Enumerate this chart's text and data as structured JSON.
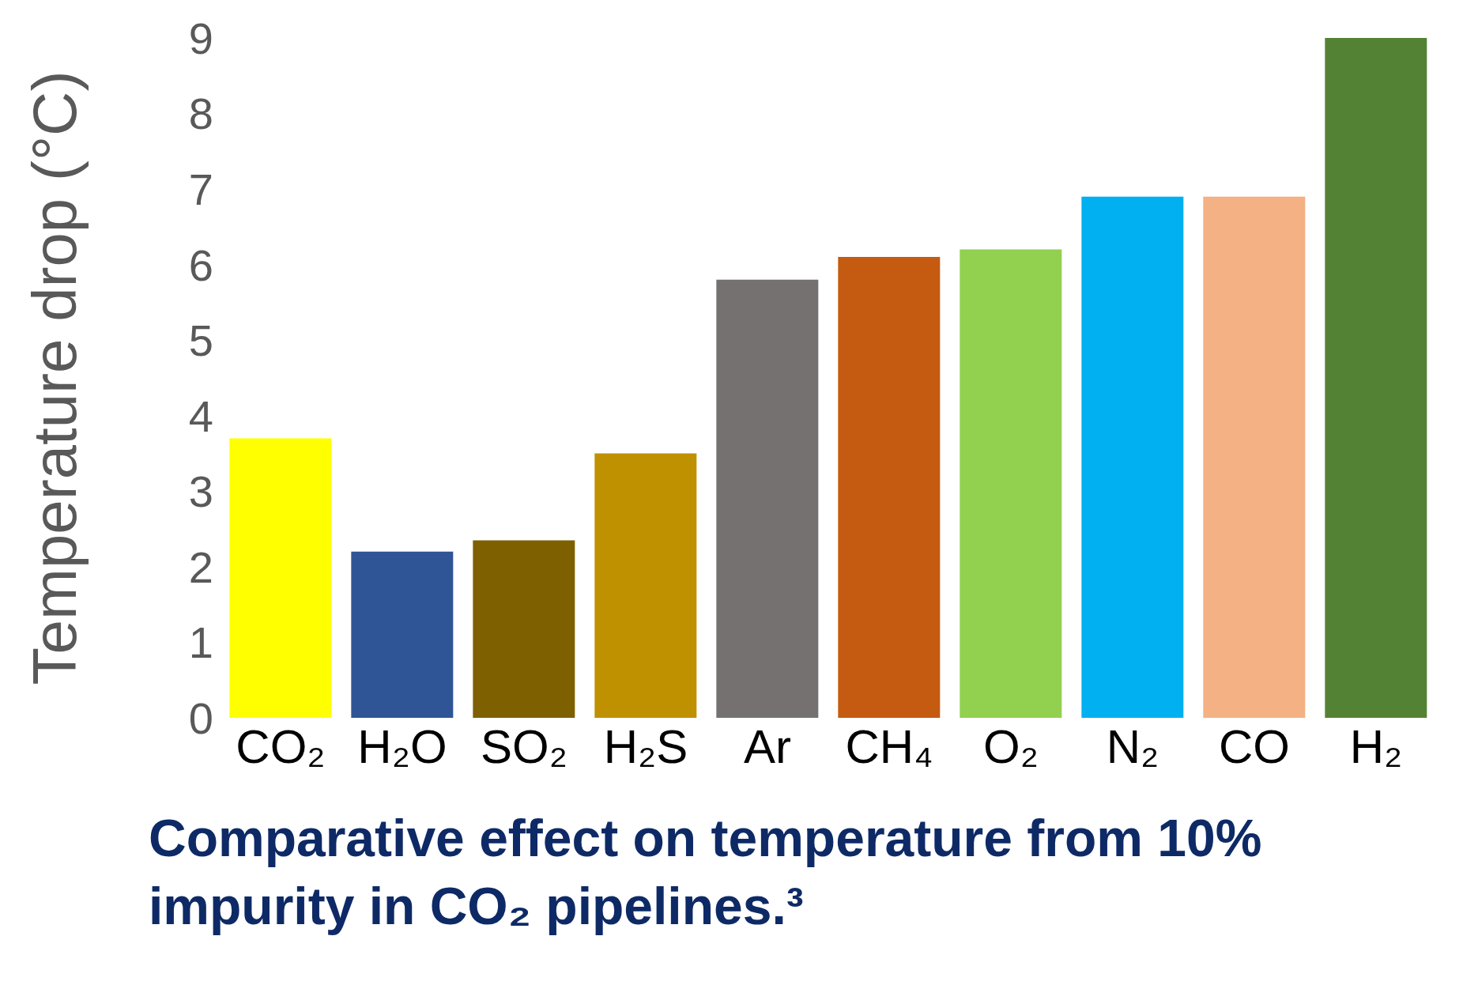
{
  "chart_data": {
    "type": "bar",
    "title": "Comparative effect on temperature from 10% impurity in CO₂ pipelines.³",
    "ylabel": "Temperature drop (°C)",
    "categories": [
      "CO₂",
      "H₂O",
      "SO₂",
      "H₂S",
      "Ar",
      "CH₄",
      "O₂",
      "N₂",
      "CO",
      "H₂"
    ],
    "values": [
      3.7,
      2.2,
      2.35,
      3.5,
      5.8,
      6.1,
      6.2,
      6.9,
      6.9,
      9.0
    ],
    "colors": [
      "#ffff00",
      "#2f5597",
      "#7f6000",
      "#bf9000",
      "#767171",
      "#c55a11",
      "#92d050",
      "#00b0f0",
      "#f4b183",
      "#548235"
    ],
    "ylim": [
      0,
      9
    ],
    "yticks": [
      0,
      1,
      2,
      3,
      4,
      5,
      6,
      7,
      8,
      9
    ],
    "grid": false
  }
}
